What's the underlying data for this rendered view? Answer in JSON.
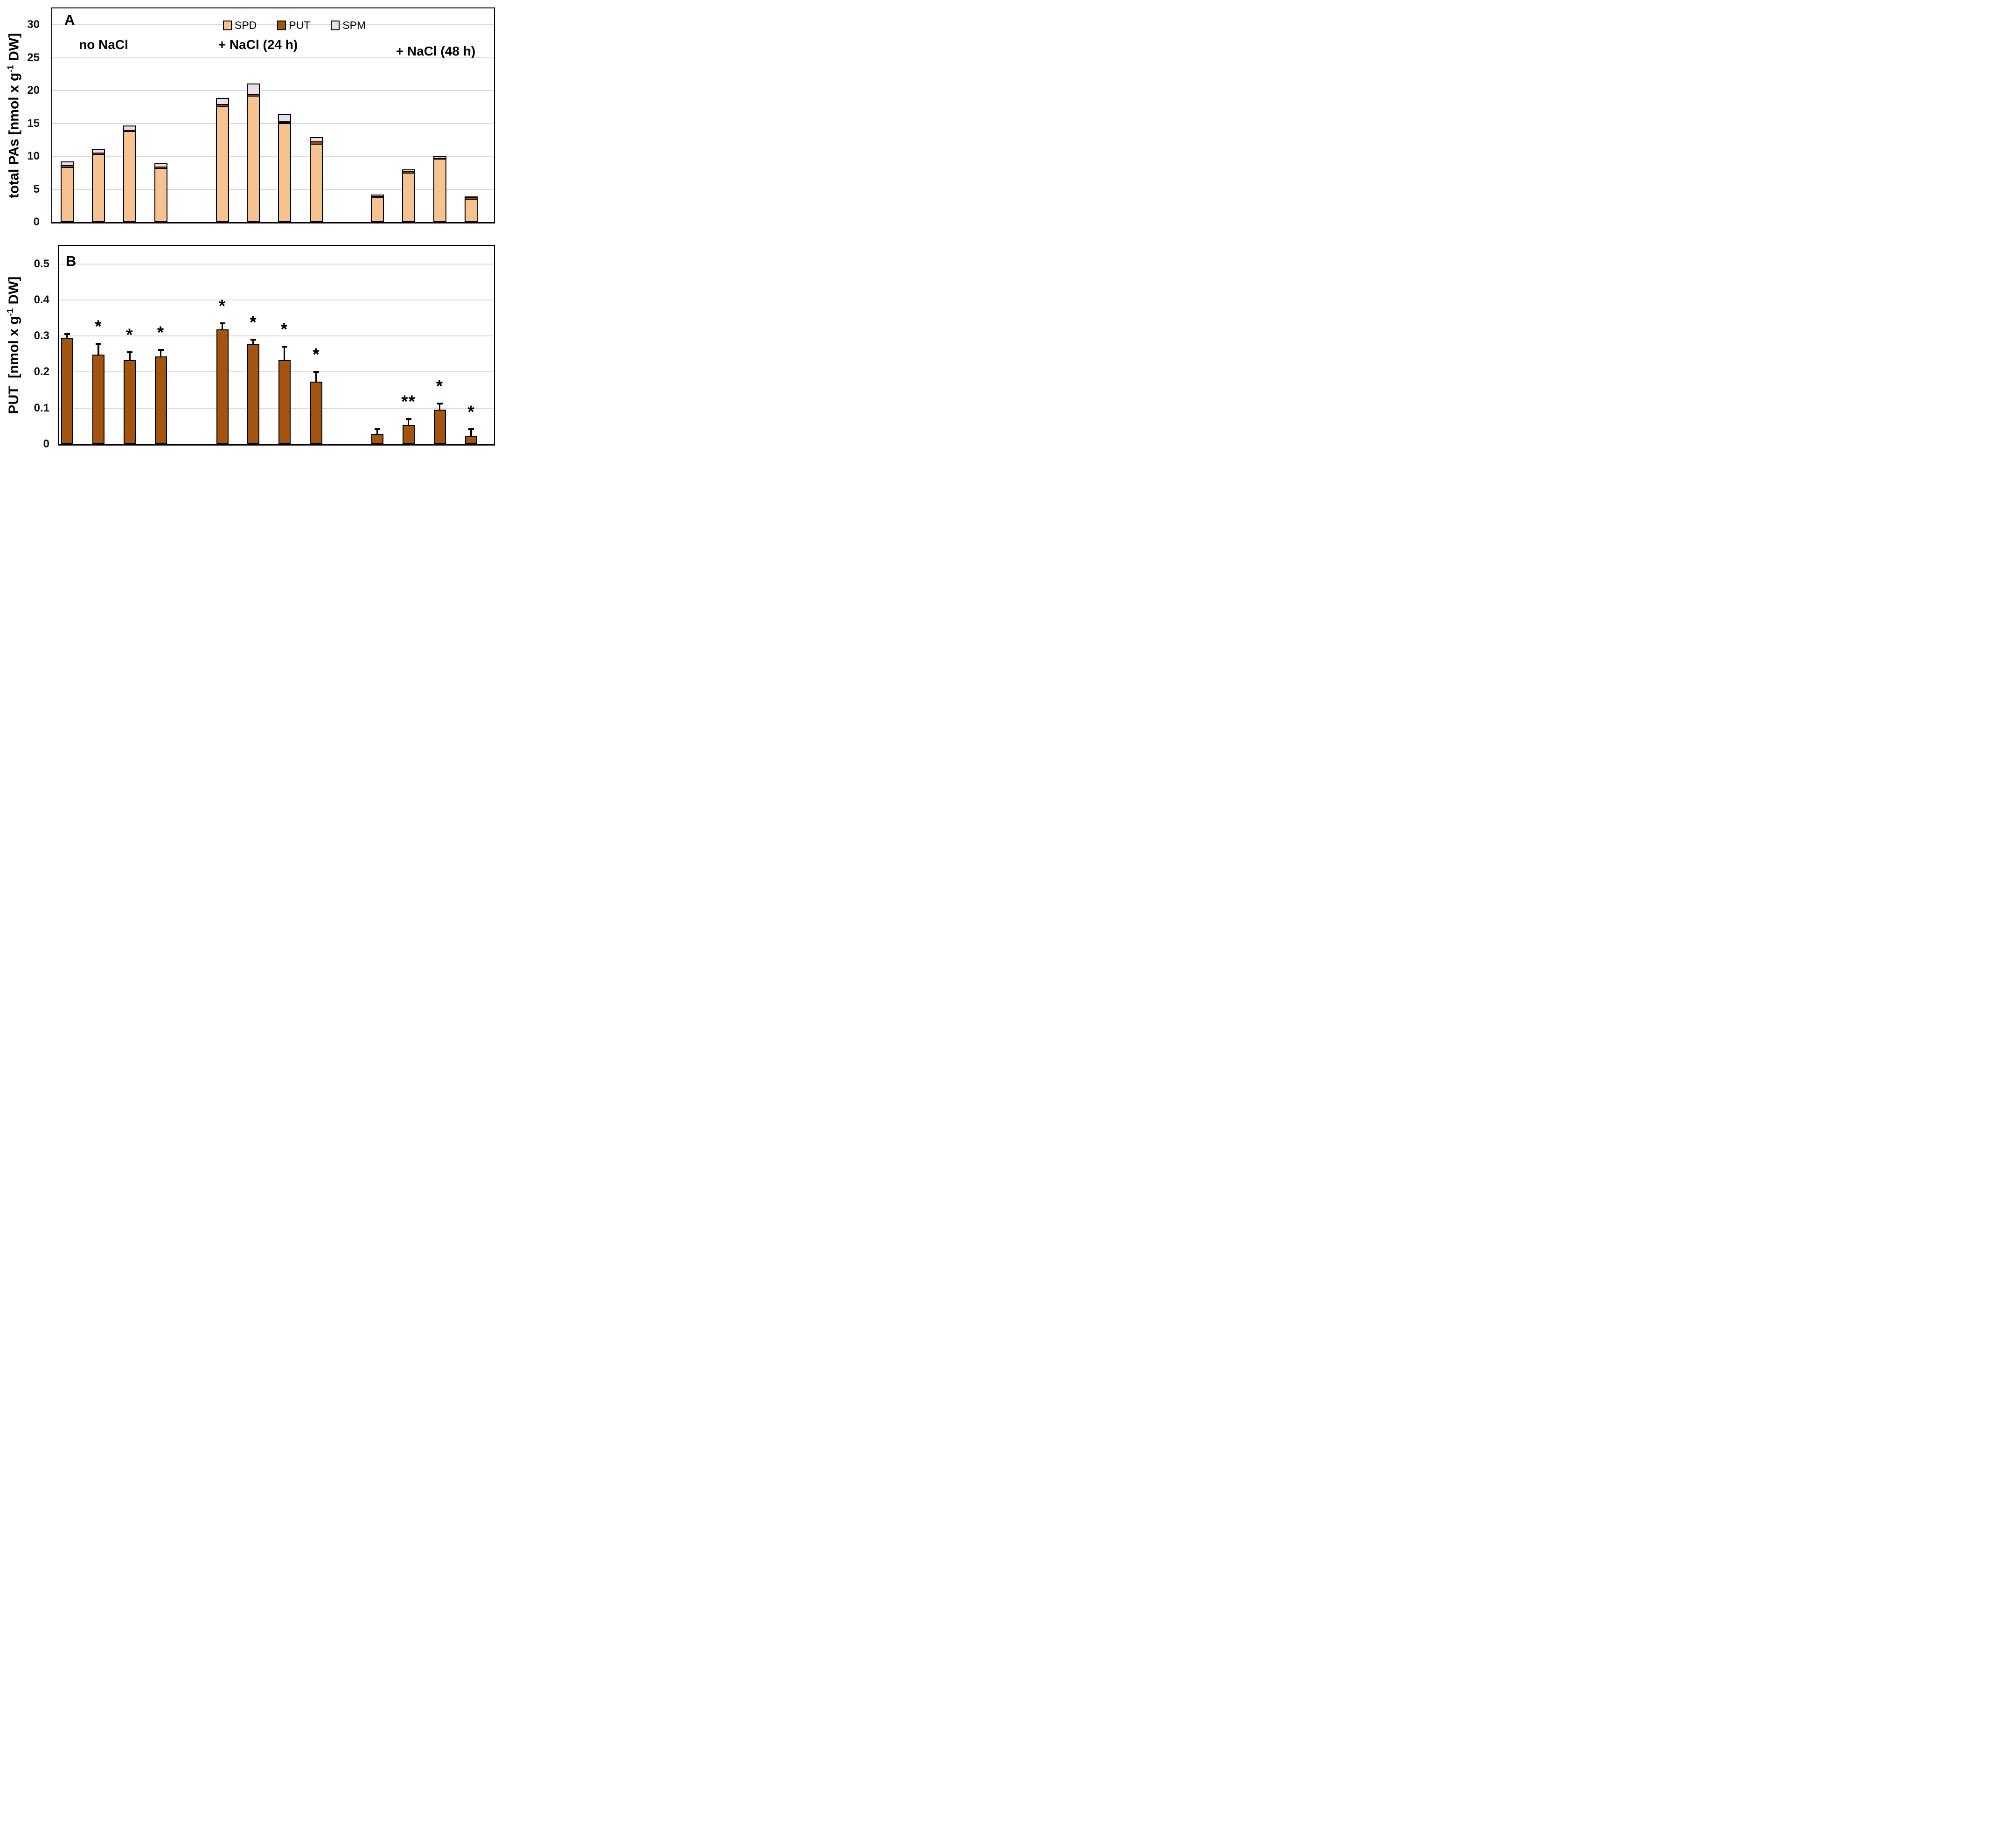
{
  "figure": {
    "panel_a": {
      "label": "A",
      "ylabel_pre": "total PAs [nmol x g",
      "ylabel_sup": "-1",
      "ylabel_post": " DW]"
    },
    "panel_b": {
      "label": "B",
      "ylabel_pre": "PUT  [nmol x g",
      "ylabel_sup": "-1",
      "ylabel_post": " DW]"
    },
    "legend": {
      "items": [
        {
          "label": "SPD",
          "color": "#F6C28F"
        },
        {
          "label": "PUT",
          "color": "#A3540E"
        },
        {
          "label": "SPM",
          "color": "#E4E1ED"
        }
      ]
    },
    "annotations": {
      "group1": "no NaCl",
      "group2": "+ NaCl (24 h)",
      "group3": "+ NaCl (48 h)"
    },
    "colors": {
      "gridline": "#D9D9D9",
      "axis": "#000000",
      "background": "#FFFFFF"
    }
  },
  "chart_data": [
    {
      "type": "bar",
      "panel": "A",
      "stacked": true,
      "title": "",
      "xlabel": "",
      "ylabel": "total PAs [nmol x g-1 DW]",
      "group_labels": [
        "no NaCl",
        "+ NaCl (24 h)",
        "+ NaCl (48 h)"
      ],
      "bars_per_group": 4,
      "bar_group_index": [
        0,
        0,
        0,
        0,
        1,
        1,
        1,
        1,
        2,
        2,
        2,
        2
      ],
      "series": [
        {
          "name": "SPD",
          "color": "#F6C28F",
          "values": [
            8.2,
            10.2,
            13.7,
            8.1,
            17.5,
            19.1,
            14.9,
            11.8,
            3.6,
            7.4,
            9.5,
            3.4
          ]
        },
        {
          "name": "PUT",
          "color": "#A3540E",
          "values": [
            0.3,
            0.25,
            0.2,
            0.2,
            0.3,
            0.3,
            0.25,
            0.3,
            0.25,
            0.15,
            0.15,
            0.2
          ]
        },
        {
          "name": "SPM",
          "color": "#E4E1ED",
          "values": [
            0.55,
            0.5,
            0.65,
            0.5,
            0.9,
            1.5,
            1.15,
            0.7,
            0.05,
            0.3,
            0.25,
            0.05
          ]
        }
      ],
      "stack_totals": [
        9.05,
        10.95,
        14.55,
        8.8,
        18.7,
        20.9,
        16.3,
        12.8,
        3.9,
        7.85,
        9.9,
        3.65
      ],
      "ytick_labels": [
        "0",
        "5",
        "10",
        "15",
        "20",
        "25",
        "30"
      ],
      "ytick_values": [
        0,
        5,
        10,
        15,
        20,
        25,
        30
      ],
      "ylim": [
        0,
        32.5
      ],
      "grid": true,
      "legend_position": "top-center"
    },
    {
      "type": "bar",
      "panel": "B",
      "stacked": false,
      "title": "",
      "xlabel": "",
      "ylabel": "PUT [nmol x g-1 DW]",
      "bar_group_index": [
        0,
        0,
        0,
        0,
        1,
        1,
        1,
        1,
        2,
        2,
        2,
        2
      ],
      "series": [
        {
          "name": "PUT",
          "color": "#A3540E",
          "values": [
            0.29,
            0.245,
            0.23,
            0.24,
            0.315,
            0.275,
            0.23,
            0.17,
            0.025,
            0.05,
            0.093,
            0.02
          ]
        }
      ],
      "errors_plus": [
        0.015,
        0.033,
        0.025,
        0.022,
        0.02,
        0.015,
        0.04,
        0.03,
        0.017,
        0.02,
        0.02,
        0.022
      ],
      "significance": [
        "",
        "*",
        "*",
        "*",
        "*",
        "*",
        "*",
        "*",
        "",
        "**",
        "*",
        "*"
      ],
      "ytick_labels": [
        "0",
        "0.1",
        "0.2",
        "0.3",
        "0.4",
        "0.5"
      ],
      "ytick_values": [
        0,
        0.1,
        0.2,
        0.3,
        0.4,
        0.5
      ],
      "ylim": [
        0,
        0.55
      ],
      "grid": true
    }
  ]
}
